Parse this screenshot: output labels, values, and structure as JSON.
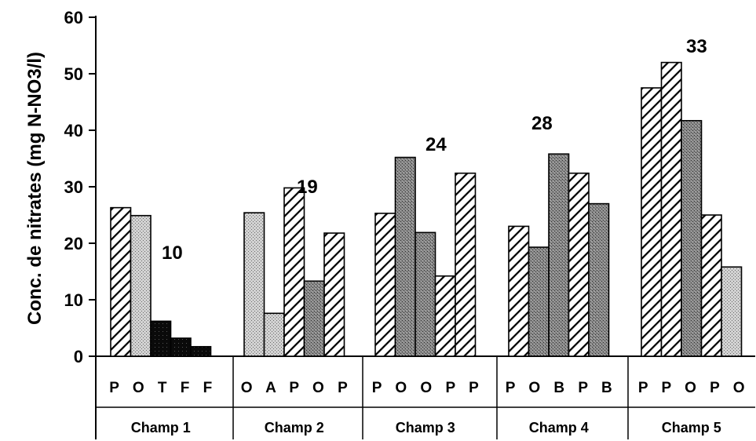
{
  "chart_data": {
    "type": "bar",
    "ylabel": "Conc. de nitrates (mg N-NO3/l)",
    "ylim": [
      0,
      60
    ],
    "yticks": [
      0,
      10,
      20,
      30,
      40,
      50,
      60
    ],
    "ytick_labels": [
      "0",
      "10",
      "20",
      "30",
      "40",
      "50",
      "60"
    ],
    "grid": false,
    "legend": "none",
    "groups": [
      {
        "name": "Champ 1",
        "letters": "P O T F F",
        "annotation": "10",
        "bars": [
          {
            "letter": "P",
            "value": 26.3,
            "pattern": "hatch"
          },
          {
            "letter": "O",
            "value": 24.9,
            "pattern": "dots"
          },
          {
            "letter": "T",
            "value": 6.2,
            "pattern": "black"
          },
          {
            "letter": "F",
            "value": 3.2,
            "pattern": "black"
          },
          {
            "letter": "F",
            "value": 1.7,
            "pattern": "black"
          }
        ]
      },
      {
        "name": "Champ 2",
        "letters": "O A P O P",
        "annotation": "19",
        "bars": [
          {
            "letter": "O",
            "value": 25.4,
            "pattern": "dots"
          },
          {
            "letter": "A",
            "value": 7.6,
            "pattern": "dots"
          },
          {
            "letter": "P",
            "value": 29.8,
            "pattern": "hatch"
          },
          {
            "letter": "O",
            "value": 13.3,
            "pattern": "darkdots"
          },
          {
            "letter": "P",
            "value": 21.8,
            "pattern": "hatch"
          }
        ]
      },
      {
        "name": "Champ 3",
        "letters": "P O O P P",
        "annotation": "24",
        "bars": [
          {
            "letter": "P",
            "value": 25.3,
            "pattern": "hatch"
          },
          {
            "letter": "O",
            "value": 35.2,
            "pattern": "darkdots"
          },
          {
            "letter": "O",
            "value": 21.9,
            "pattern": "darkdots"
          },
          {
            "letter": "P",
            "value": 14.2,
            "pattern": "hatch"
          },
          {
            "letter": "P",
            "value": 32.4,
            "pattern": "hatch"
          }
        ]
      },
      {
        "name": "Champ 4",
        "letters": "P O B P B",
        "annotation": "28",
        "bars": [
          {
            "letter": "P",
            "value": 23.0,
            "pattern": "hatch"
          },
          {
            "letter": "O",
            "value": 19.3,
            "pattern": "darkdots"
          },
          {
            "letter": "B",
            "value": 35.8,
            "pattern": "darkdots"
          },
          {
            "letter": "P",
            "value": 32.4,
            "pattern": "hatch"
          },
          {
            "letter": "B",
            "value": 27.0,
            "pattern": "darkdots"
          }
        ]
      },
      {
        "name": "Champ 5",
        "letters": "P P O P O",
        "annotation": "33",
        "bars": [
          {
            "letter": "P",
            "value": 47.5,
            "pattern": "hatch"
          },
          {
            "letter": "P",
            "value": 52.0,
            "pattern": "hatch"
          },
          {
            "letter": "O",
            "value": 41.7,
            "pattern": "darkdots"
          },
          {
            "letter": "P",
            "value": 25.0,
            "pattern": "hatch"
          },
          {
            "letter": "O",
            "value": 15.8,
            "pattern": "dots"
          }
        ]
      }
    ]
  }
}
